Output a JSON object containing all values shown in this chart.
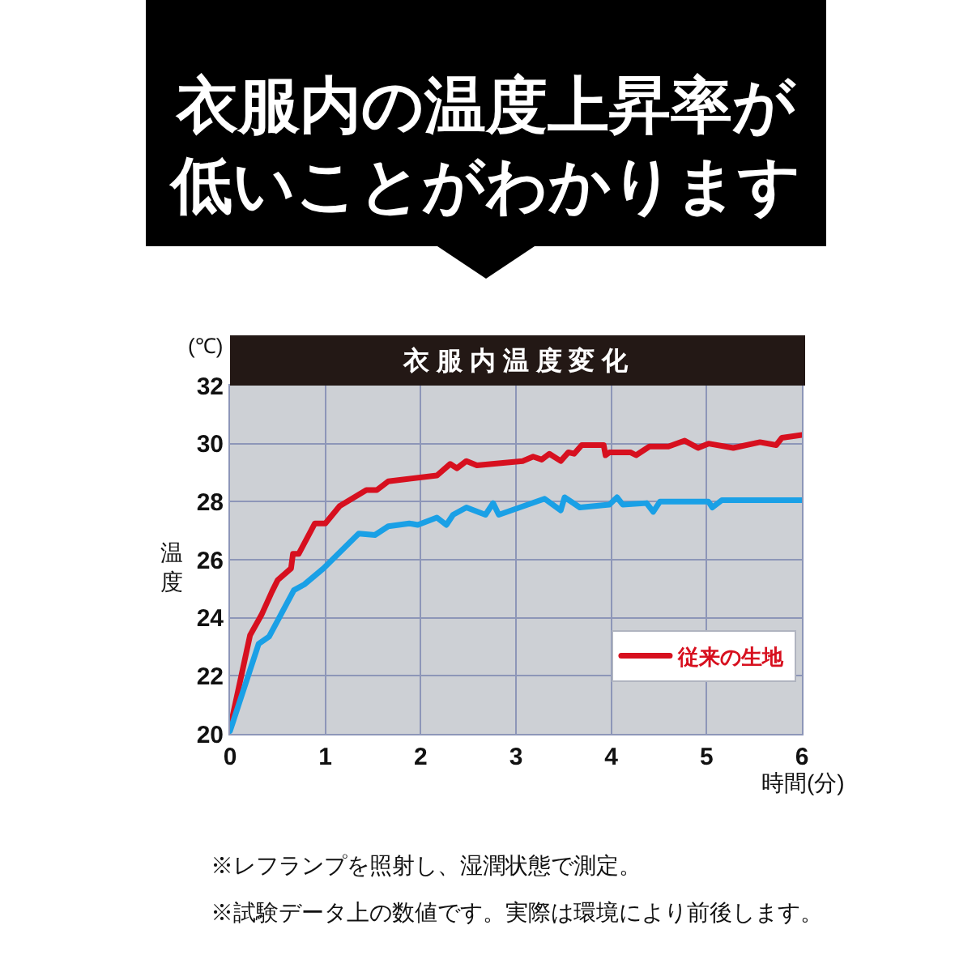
{
  "chart_data": {
    "type": "line",
    "title": "衣服内の温度上昇率が低いことがわかります",
    "subtitle": "衣服内温度変化",
    "xlabel": "時間(分)",
    "ylabel": "温度",
    "annotations": [
      "(℃)",
      "※レフランプを照射し、湿潤状態で測定。",
      "※試験データ上の数値です。実際は環境により前後します。"
    ],
    "xlim": [
      0,
      6
    ],
    "xticks": [
      0,
      1,
      2,
      3,
      4,
      5,
      6
    ],
    "ylim": [
      20,
      32
    ],
    "yticks": [
      20,
      22,
      24,
      26,
      28,
      30,
      32
    ],
    "grid": true,
    "legend": "bottom right",
    "marker": "none",
    "line_style": "solid",
    "series": [
      {
        "name": "従来の生地",
        "color": "#d7101f",
        "x": [
          0,
          0.21,
          0.33,
          0.44,
          0.5,
          0.64,
          0.66,
          0.72,
          0.89,
          1.0,
          1.15,
          1.43,
          1.54,
          1.66,
          2.17,
          2.31,
          2.38,
          2.48,
          2.59,
          3.07,
          3.18,
          3.27,
          3.35,
          3.47,
          3.55,
          3.61,
          3.69,
          3.92,
          3.94,
          3.98,
          4.2,
          4.26,
          4.4,
          4.6,
          4.77,
          4.91,
          5.02,
          5.28,
          5.56,
          5.73,
          5.79,
          6.0
        ],
        "values": [
          20.2,
          23.4,
          24.1,
          24.9,
          25.3,
          25.7,
          26.2,
          26.2,
          27.25,
          27.25,
          27.85,
          28.4,
          28.4,
          28.7,
          28.9,
          29.3,
          29.15,
          29.4,
          29.25,
          29.4,
          29.55,
          29.45,
          29.65,
          29.4,
          29.7,
          29.65,
          29.95,
          29.95,
          29.6,
          29.7,
          29.7,
          29.6,
          29.9,
          29.9,
          30.1,
          29.85,
          30.0,
          29.85,
          30.05,
          29.95,
          30.2,
          30.3
        ]
      },
      {
        "color": "#1aa0e6",
        "x": [
          0,
          0.3,
          0.41,
          0.67,
          0.78,
          0.98,
          1.35,
          1.52,
          1.66,
          1.88,
          1.97,
          2.17,
          2.27,
          2.34,
          2.48,
          2.68,
          2.76,
          2.82,
          3.3,
          3.47,
          3.51,
          3.67,
          3.98,
          4.06,
          4.12,
          4.37,
          4.44,
          4.51,
          5.02,
          5.06,
          5.16,
          6.0
        ],
        "values": [
          20.1,
          23.1,
          23.35,
          24.95,
          25.15,
          25.7,
          26.9,
          26.85,
          27.15,
          27.25,
          27.2,
          27.45,
          27.2,
          27.55,
          27.8,
          27.55,
          27.95,
          27.55,
          28.1,
          27.7,
          28.15,
          27.8,
          27.9,
          28.15,
          27.9,
          27.95,
          27.65,
          28.0,
          28.0,
          27.8,
          28.05,
          28.05
        ]
      }
    ]
  }
}
